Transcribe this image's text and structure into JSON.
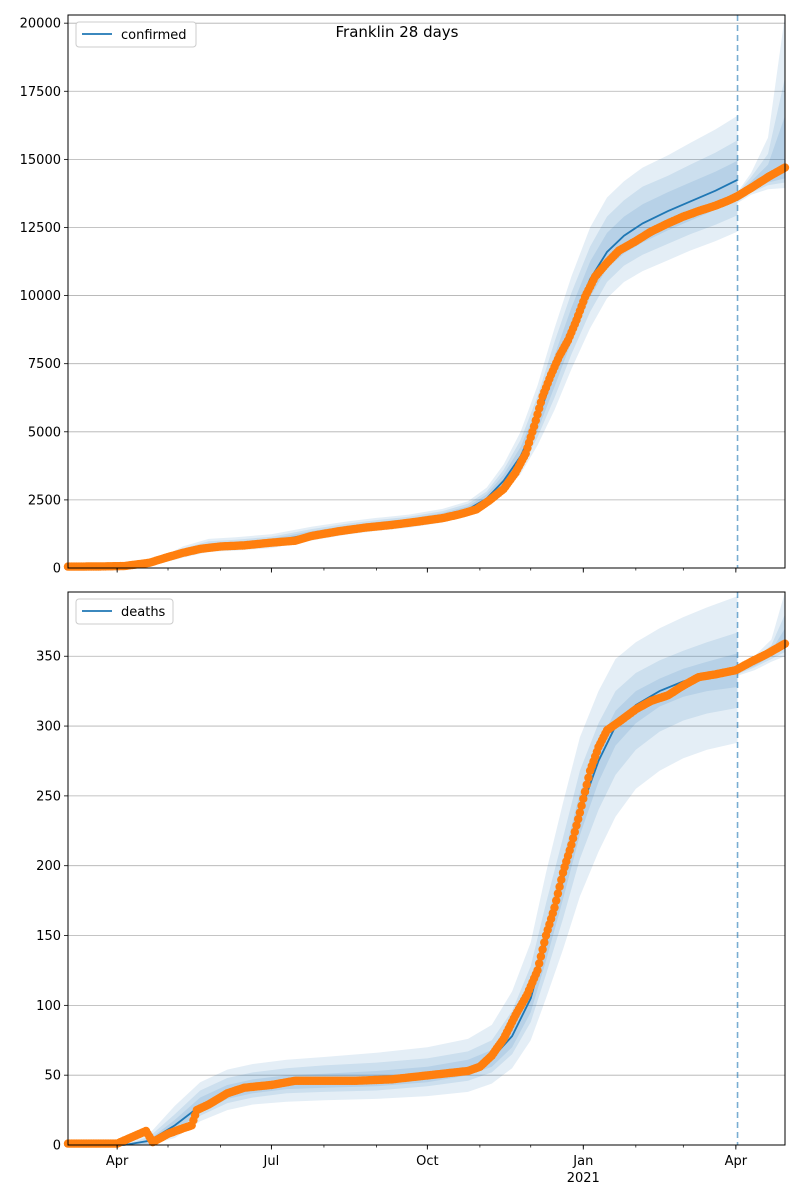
{
  "title": "Franklin 28 days",
  "colors": {
    "model_line": "#1f77b4",
    "observed": "#ff7f0e",
    "band": "#1f77b4",
    "grid": "#b0b0b0"
  },
  "x_ticks": [
    {
      "date": "2020-04-01",
      "label": "Apr",
      "sub": ""
    },
    {
      "date": "2020-07-01",
      "label": "Jul",
      "sub": ""
    },
    {
      "date": "2020-10-01",
      "label": "Oct",
      "sub": ""
    },
    {
      "date": "2021-01-01",
      "label": "Jan",
      "sub": "2021"
    },
    {
      "date": "2021-04-01",
      "label": "Apr",
      "sub": ""
    }
  ],
  "chart_data": [
    {
      "type": "line",
      "legend": "confirmed",
      "legend_position": "top-left",
      "grid": "horizontal",
      "xlim": [
        "2020-03-03",
        "2021-04-30"
      ],
      "ylim": [
        0,
        20300
      ],
      "yticks": [
        0,
        2500,
        5000,
        7500,
        10000,
        12500,
        15000,
        17500,
        20000
      ],
      "forecast_start": "2021-04-02",
      "model": {
        "dates": [
          "2020-03-03",
          "2020-03-25",
          "2020-04-10",
          "2020-04-25",
          "2020-05-10",
          "2020-05-25",
          "2020-06-10",
          "2020-07-01",
          "2020-07-25",
          "2020-08-15",
          "2020-09-01",
          "2020-09-20",
          "2020-10-10",
          "2020-10-25",
          "2020-11-05",
          "2020-11-15",
          "2020-11-25",
          "2020-12-05",
          "2020-12-15",
          "2020-12-25",
          "2021-01-05",
          "2021-01-15",
          "2021-01-25",
          "2021-02-05",
          "2021-02-20",
          "2021-03-05",
          "2021-03-20",
          "2021-04-02"
        ],
        "center": [
          0,
          0,
          60,
          220,
          560,
          800,
          860,
          960,
          1250,
          1450,
          1580,
          1700,
          1900,
          2150,
          2550,
          3200,
          4100,
          5450,
          7200,
          8900,
          10600,
          11600,
          12200,
          12650,
          13100,
          13450,
          13850,
          14250
        ],
        "bands": [
          {
            "upper": [
              0,
              0,
              80,
              330,
              800,
              1070,
              1130,
              1240,
              1520,
              1710,
              1840,
              1960,
              2170,
              2450,
              2950,
              3800,
              5000,
              6700,
              8800,
              10700,
              12500,
              13600,
              14200,
              14700,
              15150,
              15600,
              16100,
              16600
            ],
            "lower": [
              0,
              0,
              40,
              140,
              380,
              590,
              640,
              730,
              1010,
              1230,
              1360,
              1480,
              1670,
              1900,
              2230,
              2750,
              3450,
              4500,
              5800,
              7300,
              8800,
              9900,
              10500,
              10900,
              11300,
              11650,
              12000,
              12350
            ]
          },
          {
            "upper": [
              0,
              0,
              72,
              290,
              720,
              980,
              1040,
              1150,
              1430,
              1630,
              1760,
              1880,
              2090,
              2360,
              2810,
              3600,
              4700,
              6300,
              8300,
              10100,
              11800,
              12900,
              13500,
              14000,
              14400,
              14800,
              15250,
              15700
            ],
            "lower": [
              0,
              0,
              48,
              170,
              430,
              650,
              700,
              790,
              1080,
              1300,
              1430,
              1550,
              1740,
              1980,
              2330,
              2900,
              3650,
              4800,
              6250,
              7850,
              9400,
              10500,
              11100,
              11500,
              11900,
              12250,
              12600,
              12950
            ]
          },
          {
            "upper": [
              0,
              0,
              66,
              260,
              650,
              910,
              970,
              1080,
              1360,
              1560,
              1690,
              1810,
              2020,
              2270,
              2700,
              3430,
              4440,
              5920,
              7800,
              9550,
              11250,
              12300,
              12900,
              13350,
              13800,
              14150,
              14550,
              14950
            ],
            "lower": [
              0,
              0,
              54,
              190,
              490,
              700,
              750,
              850,
              1140,
              1350,
              1480,
              1600,
              1790,
              2040,
              2420,
              3020,
              3810,
              5030,
              6650,
              8300,
              9950,
              11000,
              11550,
              11950,
              12400,
              12750,
              13150,
              13500
            ]
          }
        ]
      },
      "forecast_bands": {
        "dates": [
          "2021-04-02",
          "2021-04-10",
          "2021-04-20",
          "2021-04-30"
        ],
        "bands": [
          {
            "upper": [
              13800,
              14500,
              15800,
              20300
            ],
            "lower": [
              13400,
              13700,
              13900,
              13950
            ]
          },
          {
            "upper": [
              13750,
              14350,
              15200,
              18000
            ],
            "lower": [
              13450,
              13780,
              14050,
              14150
            ]
          },
          {
            "upper": [
              13700,
              14200,
              14800,
              16600
            ],
            "lower": [
              13500,
              13850,
              14150,
              14300
            ]
          }
        ]
      },
      "observed": {
        "dates": [
          "2020-03-03",
          "2020-03-20",
          "2020-04-05",
          "2020-04-20",
          "2020-05-01",
          "2020-05-10",
          "2020-05-20",
          "2020-06-01",
          "2020-06-15",
          "2020-07-01",
          "2020-07-15",
          "2020-07-25",
          "2020-08-10",
          "2020-08-25",
          "2020-09-10",
          "2020-09-25",
          "2020-10-10",
          "2020-10-20",
          "2020-10-30",
          "2020-11-07",
          "2020-11-15",
          "2020-11-22",
          "2020-11-28",
          "2020-12-03",
          "2020-12-08",
          "2020-12-13",
          "2020-12-18",
          "2020-12-23",
          "2020-12-28",
          "2021-01-02",
          "2021-01-08",
          "2021-01-15",
          "2021-01-22",
          "2021-02-01",
          "2021-02-10",
          "2021-02-20",
          "2021-03-01",
          "2021-03-10",
          "2021-03-20",
          "2021-03-28",
          "2021-04-02",
          "2021-04-10",
          "2021-04-20",
          "2021-04-30"
        ],
        "values": [
          50,
          55,
          70,
          190,
          400,
          560,
          700,
          790,
          830,
          930,
          1000,
          1180,
          1350,
          1480,
          1580,
          1700,
          1830,
          1970,
          2150,
          2500,
          2900,
          3500,
          4200,
          5200,
          6300,
          7100,
          7800,
          8350,
          9100,
          9950,
          10700,
          11200,
          11650,
          12000,
          12350,
          12650,
          12900,
          13100,
          13300,
          13500,
          13650,
          13950,
          14350,
          14700
        ]
      }
    },
    {
      "type": "line",
      "legend": "deaths",
      "legend_position": "top-left",
      "grid": "horizontal",
      "xlim": [
        "2020-03-03",
        "2021-04-30"
      ],
      "ylim": [
        0,
        396
      ],
      "yticks": [
        0,
        50,
        100,
        150,
        200,
        250,
        300,
        350
      ],
      "forecast_start": "2021-04-02",
      "model": {
        "dates": [
          "2020-03-03",
          "2020-04-05",
          "2020-04-20",
          "2020-05-05",
          "2020-05-20",
          "2020-06-05",
          "2020-06-20",
          "2020-07-10",
          "2020-08-01",
          "2020-09-01",
          "2020-10-01",
          "2020-10-25",
          "2020-11-08",
          "2020-11-20",
          "2020-12-01",
          "2020-12-10",
          "2020-12-20",
          "2020-12-30",
          "2021-01-10",
          "2021-01-20",
          "2021-02-01",
          "2021-02-15",
          "2021-03-01",
          "2021-03-15",
          "2021-04-02"
        ],
        "center": [
          0,
          0,
          3,
          14,
          28,
          38,
          42,
          45,
          46,
          47,
          50,
          55,
          62,
          78,
          105,
          145,
          190,
          238,
          275,
          300,
          315,
          325,
          332,
          336,
          340
        ],
        "bands": [
          {
            "upper": [
              0,
              0,
              8,
              28,
              45,
              54,
              58,
              61,
              63,
              66,
              70,
              76,
              86,
              110,
              145,
              195,
              245,
              292,
              325,
              348,
              360,
              370,
              378,
              385,
              393
            ],
            "lower": [
              0,
              0,
              0,
              5,
              17,
              25,
              29,
              31,
              32,
              33,
              35,
              38,
              44,
              55,
              75,
              105,
              140,
              178,
              210,
              235,
              255,
              268,
              277,
              283,
              288
            ]
          },
          {
            "upper": [
              0,
              0,
              6,
              22,
              39,
              48,
              52,
              55,
              57,
              59,
              62,
              67,
              75,
              96,
              128,
              173,
              220,
              268,
              302,
              325,
              338,
              347,
              354,
              360,
              367
            ],
            "lower": [
              0,
              0,
              0,
              8,
              21,
              30,
              34,
              37,
              38,
              39,
              42,
              46,
              52,
              65,
              88,
              122,
              162,
              205,
              240,
              265,
              283,
              296,
              304,
              309,
              313
            ]
          },
          {
            "upper": [
              0,
              0,
              4,
              18,
              34,
              43,
              47,
              50,
              51,
              53,
              56,
              61,
              68,
              87,
              115,
              158,
              204,
              252,
              287,
              311,
              325,
              334,
              341,
              346,
              352
            ],
            "lower": [
              0,
              0,
              1,
              10,
              23,
              33,
              37,
              40,
              41,
              42,
              45,
              50,
              56,
              70,
              95,
              132,
              176,
              222,
              260,
              286,
              302,
              314,
              321,
              325,
              328
            ]
          }
        ]
      },
      "forecast_bands": {
        "dates": [
          "2021-04-02",
          "2021-04-12",
          "2021-04-22",
          "2021-04-30"
        ],
        "bands": [
          {
            "upper": [
              342,
              350,
              362,
              396
            ],
            "lower": [
              336,
              340,
              346,
              350
            ]
          },
          {
            "upper": [
              341,
              348,
              358,
              380
            ],
            "lower": [
              337,
              342,
              348,
              353
            ]
          },
          {
            "upper": [
              340,
              346,
              354,
              370
            ],
            "lower": [
              338,
              343,
              350,
              356
            ]
          }
        ]
      },
      "observed": {
        "dates": [
          "2020-03-03",
          "2020-04-01",
          "2020-04-18",
          "2020-04-22",
          "2020-04-25",
          "2020-05-01",
          "2020-05-10",
          "2020-05-15",
          "2020-05-18",
          "2020-05-25",
          "2020-06-05",
          "2020-06-15",
          "2020-07-01",
          "2020-07-15",
          "2020-08-01",
          "2020-08-20",
          "2020-09-10",
          "2020-09-25",
          "2020-10-10",
          "2020-10-25",
          "2020-11-01",
          "2020-11-08",
          "2020-11-15",
          "2020-11-22",
          "2020-11-29",
          "2020-12-05",
          "2020-12-10",
          "2020-12-15",
          "2020-12-20",
          "2020-12-25",
          "2020-12-30",
          "2021-01-05",
          "2021-01-10",
          "2021-01-15",
          "2021-01-22",
          "2021-02-01",
          "2021-02-10",
          "2021-02-20",
          "2021-03-01",
          "2021-03-10",
          "2021-03-20",
          "2021-04-01",
          "2021-04-10",
          "2021-04-20",
          "2021-04-30"
        ],
        "values": [
          1,
          1,
          10,
          2,
          4,
          8,
          12,
          14,
          25,
          29,
          37,
          41,
          43,
          46,
          46,
          46,
          47,
          49,
          51,
          53,
          56,
          64,
          76,
          93,
          108,
          125,
          150,
          170,
          195,
          215,
          238,
          268,
          285,
          297,
          303,
          312,
          318,
          322,
          329,
          335,
          337,
          340,
          346,
          352,
          359
        ]
      }
    }
  ]
}
